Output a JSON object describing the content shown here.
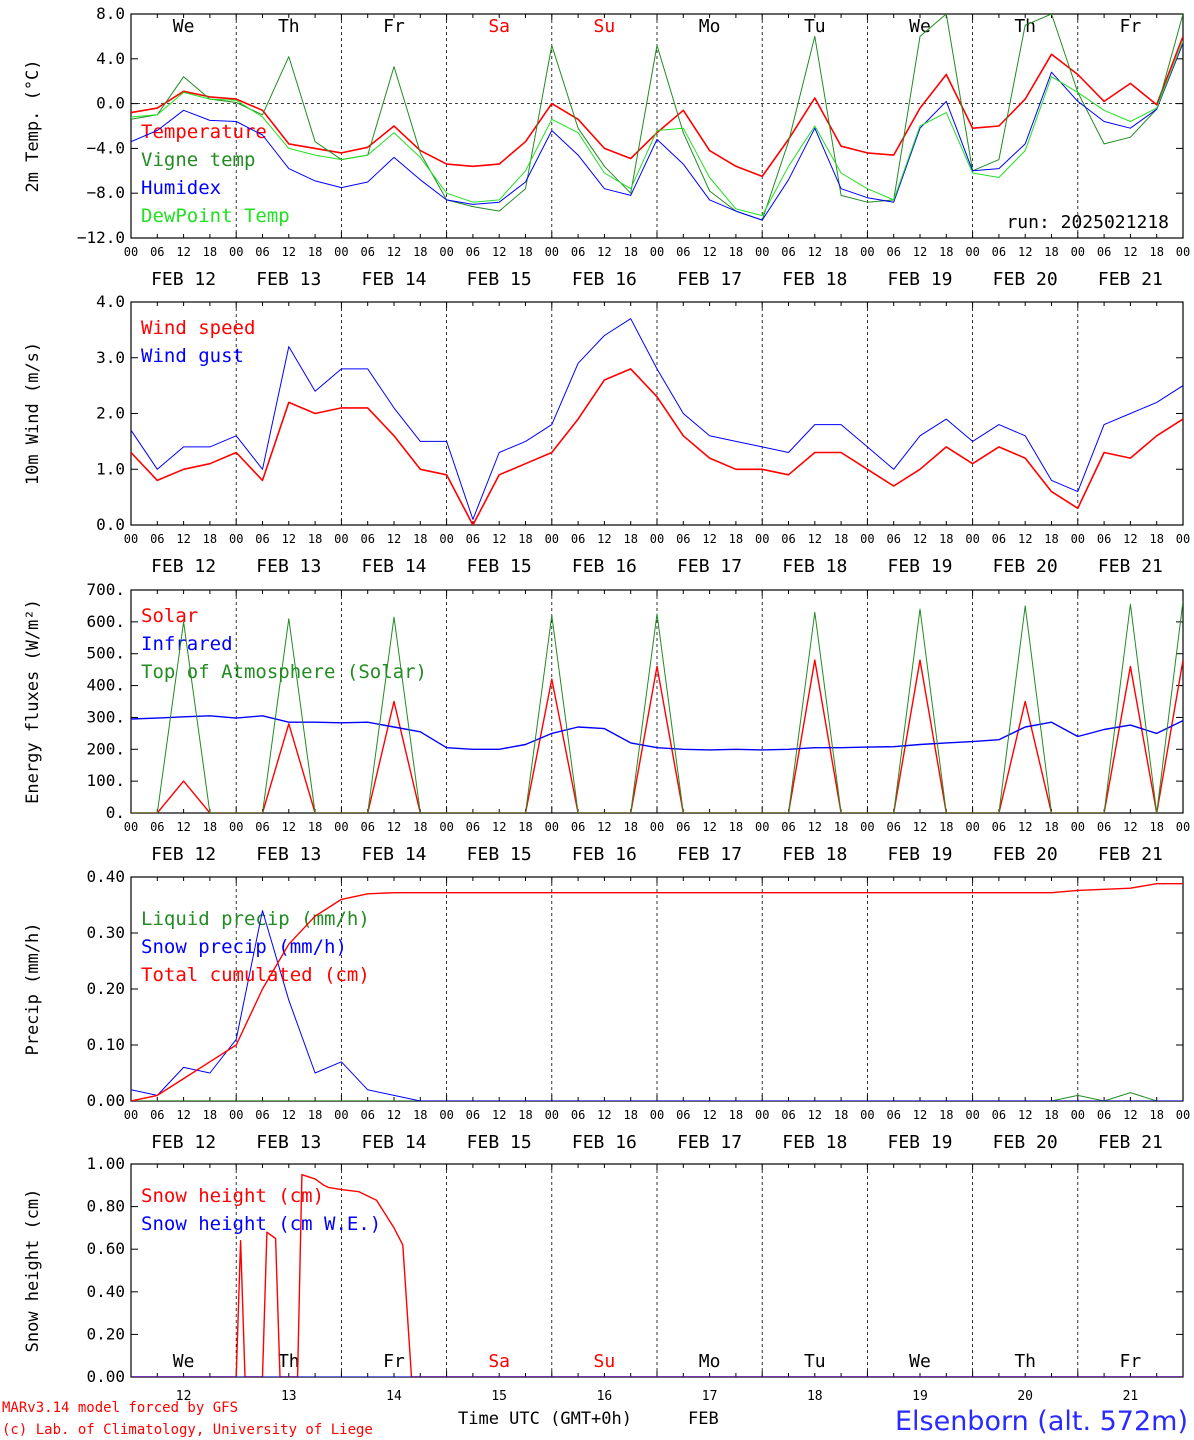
{
  "colors": {
    "red": "#ff0000",
    "green": "#228b22",
    "blue": "#0000ff",
    "lightgreen": "#22e022",
    "axis": "#000000",
    "grid": "#000000"
  },
  "footer": {
    "credit_line1": "MARv3.14 model forced by GFS",
    "credit_line2": "(c) Lab. of Climatology, University of Liege",
    "xaxis_title": "Time UTC (GMT+0h)",
    "month": "FEB",
    "station": "Elsenborn (alt. 572m)"
  },
  "time_axis": {
    "hour_labels": [
      "00",
      "06",
      "12",
      "18"
    ],
    "day_labels": [
      "FEB 12",
      "FEB 13",
      "FEB 14",
      "FEB 15",
      "FEB 16",
      "FEB 17",
      "FEB 18",
      "FEB 19",
      "FEB 20",
      "FEB 21"
    ],
    "day_numbers": [
      "12",
      "13",
      "14",
      "15",
      "16",
      "17",
      "18",
      "19",
      "20",
      "21"
    ],
    "weekdays": [
      "We",
      "Th",
      "Fr",
      "Sa",
      "Su",
      "Mo",
      "Tu",
      "We",
      "Th",
      "Fr"
    ],
    "weekend_index": [
      3,
      4
    ]
  },
  "chart_data": [
    {
      "type": "line",
      "id": "temp",
      "ylabel": "2m Temp. (°C)",
      "ylim": [
        -12,
        8
      ],
      "yticks": [
        {
          "v": 8,
          "t": "8.0"
        },
        {
          "v": 4,
          "t": "4.0"
        },
        {
          "v": 0,
          "t": "0.0"
        },
        {
          "v": -4,
          "t": "−4.0"
        },
        {
          "v": -8,
          "t": "−8.0"
        },
        {
          "v": -12,
          "t": "−12.0"
        }
      ],
      "zero_line": true,
      "annotation": "run: 2025021218",
      "x_hours": [
        0,
        6,
        12,
        18,
        24,
        30,
        36,
        42,
        48,
        54,
        60,
        66,
        72,
        78,
        84,
        90,
        96,
        102,
        108,
        114,
        120,
        126,
        132,
        138,
        144,
        150,
        156,
        162,
        168,
        174,
        180,
        186,
        192,
        198,
        204,
        210,
        216,
        222,
        228,
        234,
        240
      ],
      "series": [
        {
          "name": "Temperature",
          "color": "red",
          "width": 1.6,
          "values": [
            -0.8,
            -0.4,
            1.1,
            0.6,
            0.4,
            -0.6,
            -3.6,
            -4.0,
            -4.4,
            -3.9,
            -2.0,
            -4.2,
            -5.4,
            -5.6,
            -5.4,
            -3.4,
            0.0,
            -1.4,
            -4.0,
            -4.9,
            -2.6,
            -0.6,
            -4.2,
            -5.6,
            -6.5,
            -3.2,
            0.5,
            -3.8,
            -4.4,
            -4.6,
            -0.4,
            2.6,
            -2.2,
            -2.0,
            0.4,
            4.4,
            2.6,
            0.2,
            1.8,
            -0.1,
            6.0
          ]
        },
        {
          "name": "Vigne temp",
          "color": "green",
          "width": 1.0,
          "values": [
            -1.4,
            -1.0,
            2.4,
            0.4,
            0.1,
            -1.0,
            4.2,
            -3.4,
            -5.0,
            -4.6,
            3.3,
            -4.4,
            -8.6,
            -9.2,
            -9.6,
            -7.6,
            5.2,
            -2.2,
            -5.6,
            -8.0,
            5.2,
            -2.6,
            -7.8,
            -9.6,
            -10.4,
            -3.4,
            6.0,
            -8.2,
            -8.8,
            -8.6,
            6.0,
            8.0,
            -6.0,
            -5.0,
            7.0,
            8.0,
            1.0,
            -3.6,
            -3.0,
            -0.5,
            8.0
          ]
        },
        {
          "name": "Humidex",
          "color": "blue",
          "width": 1.0,
          "values": [
            -3.4,
            -2.4,
            -0.6,
            -1.5,
            -1.6,
            -2.8,
            -5.8,
            -6.9,
            -7.5,
            -7.0,
            -4.8,
            -6.8,
            -8.6,
            -9.0,
            -8.8,
            -7.0,
            -2.4,
            -4.6,
            -7.6,
            -8.2,
            -3.2,
            -5.4,
            -8.6,
            -9.6,
            -10.4,
            -6.8,
            -2.2,
            -7.6,
            -8.4,
            -8.8,
            -2.2,
            0.2,
            -6.0,
            -5.8,
            -3.6,
            2.8,
            0.2,
            -1.6,
            -2.2,
            -0.5,
            5.4
          ]
        },
        {
          "name": "DewPoint Temp",
          "color": "lightgreen",
          "width": 1.0,
          "values": [
            -1.2,
            -1.0,
            1.0,
            0.4,
            0.3,
            -1.2,
            -4.0,
            -4.6,
            -5.0,
            -4.6,
            -2.6,
            -4.8,
            -8.0,
            -8.8,
            -8.6,
            -6.0,
            -1.4,
            -2.6,
            -6.2,
            -7.6,
            -2.4,
            -2.2,
            -6.6,
            -9.4,
            -10.0,
            -5.6,
            -2.0,
            -6.2,
            -7.6,
            -8.6,
            -2.0,
            -0.8,
            -6.2,
            -6.6,
            -4.2,
            2.4,
            1.0,
            -0.6,
            -1.6,
            -0.4,
            5.6
          ]
        }
      ]
    },
    {
      "type": "line",
      "id": "wind",
      "ylabel": "10m Wind (m/s)",
      "ylim": [
        0,
        4
      ],
      "yticks": [
        {
          "v": 4,
          "t": "4.0"
        },
        {
          "v": 3,
          "t": "3.0"
        },
        {
          "v": 2,
          "t": "2.0"
        },
        {
          "v": 1,
          "t": "1.0"
        },
        {
          "v": 0,
          "t": "0.0"
        }
      ],
      "x_hours": [
        0,
        6,
        12,
        18,
        24,
        30,
        36,
        42,
        48,
        54,
        60,
        66,
        72,
        78,
        84,
        90,
        96,
        102,
        108,
        114,
        120,
        126,
        132,
        138,
        144,
        150,
        156,
        162,
        168,
        174,
        180,
        186,
        192,
        198,
        204,
        210,
        216,
        222,
        228,
        234,
        240
      ],
      "series": [
        {
          "name": "Wind speed",
          "color": "red",
          "width": 1.6,
          "values": [
            1.3,
            0.8,
            1.0,
            1.1,
            1.3,
            0.8,
            2.2,
            2.0,
            2.1,
            2.1,
            1.6,
            1.0,
            0.9,
            0.0,
            0.9,
            1.1,
            1.3,
            1.9,
            2.6,
            2.8,
            2.3,
            1.6,
            1.2,
            1.0,
            1.0,
            0.9,
            1.3,
            1.3,
            1.0,
            0.7,
            1.0,
            1.4,
            1.1,
            1.4,
            1.2,
            0.6,
            0.3,
            1.3,
            1.2,
            1.6,
            1.9
          ]
        },
        {
          "name": "Wind gust",
          "color": "blue",
          "width": 1.0,
          "values": [
            1.7,
            1.0,
            1.4,
            1.4,
            1.6,
            1.0,
            3.2,
            2.4,
            2.8,
            2.8,
            2.1,
            1.5,
            1.5,
            0.1,
            1.3,
            1.5,
            1.8,
            2.9,
            3.4,
            3.7,
            2.8,
            2.0,
            1.6,
            1.5,
            1.4,
            1.3,
            1.8,
            1.8,
            1.4,
            1.0,
            1.6,
            1.9,
            1.5,
            1.8,
            1.6,
            0.8,
            0.6,
            1.8,
            2.0,
            2.2,
            2.5
          ]
        }
      ]
    },
    {
      "type": "line",
      "id": "energy",
      "ylabel": "Energy fluxes (W/m²)",
      "ylim": [
        0,
        700
      ],
      "yticks": [
        {
          "v": 700,
          "t": "700."
        },
        {
          "v": 600,
          "t": "600."
        },
        {
          "v": 500,
          "t": "500."
        },
        {
          "v": 400,
          "t": "400."
        },
        {
          "v": 300,
          "t": "300."
        },
        {
          "v": 200,
          "t": "200."
        },
        {
          "v": 100,
          "t": "100."
        },
        {
          "v": 0,
          "t": "0."
        }
      ],
      "x_hours": [
        0,
        6,
        12,
        18,
        24,
        30,
        36,
        42,
        48,
        54,
        60,
        66,
        72,
        78,
        84,
        90,
        96,
        102,
        108,
        114,
        120,
        126,
        132,
        138,
        144,
        150,
        156,
        162,
        168,
        174,
        180,
        186,
        192,
        198,
        204,
        210,
        216,
        222,
        228,
        234,
        240
      ],
      "series": [
        {
          "name": "Solar",
          "color": "red",
          "width": 1.4,
          "values": [
            0,
            0,
            100,
            0,
            0,
            0,
            280,
            0,
            0,
            0,
            350,
            0,
            0,
            0,
            0,
            0,
            420,
            0,
            0,
            0,
            460,
            0,
            0,
            0,
            0,
            0,
            480,
            0,
            0,
            0,
            480,
            0,
            0,
            0,
            350,
            0,
            0,
            0,
            460,
            0,
            480
          ]
        },
        {
          "name": "Infrared",
          "color": "blue",
          "width": 1.4,
          "values": [
            295,
            298,
            302,
            305,
            298,
            305,
            285,
            285,
            283,
            285,
            270,
            255,
            205,
            200,
            200,
            215,
            250,
            270,
            265,
            220,
            205,
            200,
            198,
            200,
            198,
            200,
            205,
            205,
            207,
            208,
            215,
            220,
            224,
            230,
            270,
            285,
            240,
            262,
            276,
            250,
            290
          ]
        },
        {
          "name": "Top of Atmosphere (Solar)",
          "color": "green",
          "width": 1.0,
          "values": [
            0,
            0,
            600,
            0,
            0,
            0,
            610,
            0,
            0,
            0,
            615,
            0,
            0,
            0,
            0,
            0,
            620,
            0,
            0,
            0,
            625,
            0,
            0,
            0,
            0,
            0,
            630,
            0,
            0,
            0,
            640,
            0,
            0,
            0,
            650,
            0,
            0,
            0,
            655,
            0,
            665
          ]
        }
      ]
    },
    {
      "type": "line",
      "id": "precip",
      "ylabel": "Precip (mm/h)",
      "ylim": [
        0,
        0.4
      ],
      "yticks": [
        {
          "v": 0.4,
          "t": "0.40"
        },
        {
          "v": 0.3,
          "t": "0.30"
        },
        {
          "v": 0.2,
          "t": "0.20"
        },
        {
          "v": 0.1,
          "t": "0.10"
        },
        {
          "v": 0,
          "t": "0.00"
        }
      ],
      "x_hours": [
        0,
        6,
        12,
        18,
        24,
        30,
        36,
        42,
        48,
        54,
        60,
        66,
        72,
        78,
        84,
        90,
        96,
        102,
        108,
        114,
        120,
        126,
        132,
        138,
        144,
        150,
        156,
        162,
        168,
        174,
        180,
        186,
        192,
        198,
        204,
        210,
        216,
        222,
        228,
        234,
        240
      ],
      "series": [
        {
          "name": "Liquid precip (mm/h)",
          "color": "green",
          "width": 1.0,
          "values": [
            0,
            0,
            0,
            0,
            0,
            0,
            0,
            0,
            0,
            0,
            0,
            0,
            0,
            0,
            0,
            0,
            0,
            0,
            0,
            0,
            0,
            0,
            0,
            0,
            0,
            0,
            0,
            0,
            0,
            0,
            0,
            0,
            0,
            0,
            0,
            0,
            0.01,
            0,
            0.015,
            0,
            0
          ]
        },
        {
          "name": "Snow precip (mm/h)",
          "color": "blue",
          "width": 1.0,
          "values": [
            0.02,
            0.01,
            0.06,
            0.05,
            0.11,
            0.34,
            0.18,
            0.05,
            0.07,
            0.02,
            0.01,
            0,
            0,
            0,
            0,
            0,
            0,
            0,
            0,
            0,
            0,
            0,
            0,
            0,
            0,
            0,
            0,
            0,
            0,
            0,
            0,
            0,
            0,
            0,
            0,
            0,
            0,
            0,
            0,
            0,
            0
          ]
        },
        {
          "name": "Total cumulated (cm)",
          "color": "red",
          "width": 1.4,
          "values": [
            0.0,
            0.01,
            0.04,
            0.07,
            0.1,
            0.2,
            0.28,
            0.33,
            0.36,
            0.37,
            0.372,
            0.372,
            0.372,
            0.372,
            0.372,
            0.372,
            0.372,
            0.372,
            0.372,
            0.372,
            0.372,
            0.372,
            0.372,
            0.372,
            0.372,
            0.372,
            0.372,
            0.372,
            0.372,
            0.372,
            0.372,
            0.372,
            0.372,
            0.372,
            0.372,
            0.372,
            0.376,
            0.378,
            0.38,
            0.388,
            0.388
          ]
        }
      ]
    },
    {
      "type": "line",
      "id": "snow",
      "ylabel": "Snow height (cm)",
      "ylim": [
        0,
        1.0
      ],
      "yticks": [
        {
          "v": 1.0,
          "t": "1.00"
        },
        {
          "v": 0.8,
          "t": "0.80"
        },
        {
          "v": 0.6,
          "t": "0.60"
        },
        {
          "v": 0.4,
          "t": "0.40"
        },
        {
          "v": 0.2,
          "t": "0.20"
        },
        {
          "v": 0,
          "t": "0.00"
        }
      ],
      "x_hours": [
        0,
        24,
        25,
        26,
        27,
        30,
        31,
        33,
        34,
        38,
        39,
        42,
        44,
        45,
        48,
        52,
        56,
        60,
        62,
        64,
        65,
        240
      ],
      "series": [
        {
          "name": "Snow height (cm)",
          "color": "red",
          "width": 1.4,
          "values": [
            0,
            0,
            0.64,
            0,
            0,
            0,
            0.68,
            0.65,
            0,
            0,
            0.95,
            0.93,
            0.9,
            0.89,
            0.88,
            0.87,
            0.83,
            0.7,
            0.62,
            0,
            0,
            0
          ]
        },
        {
          "name": "Snow height (cm W.E.)",
          "color": "blue",
          "width": 1.0,
          "values": [
            0,
            0,
            0,
            0,
            0,
            0,
            0,
            0,
            0,
            0,
            0,
            0,
            0,
            0,
            0,
            0,
            0,
            0,
            0,
            0,
            0,
            0
          ]
        }
      ]
    }
  ]
}
